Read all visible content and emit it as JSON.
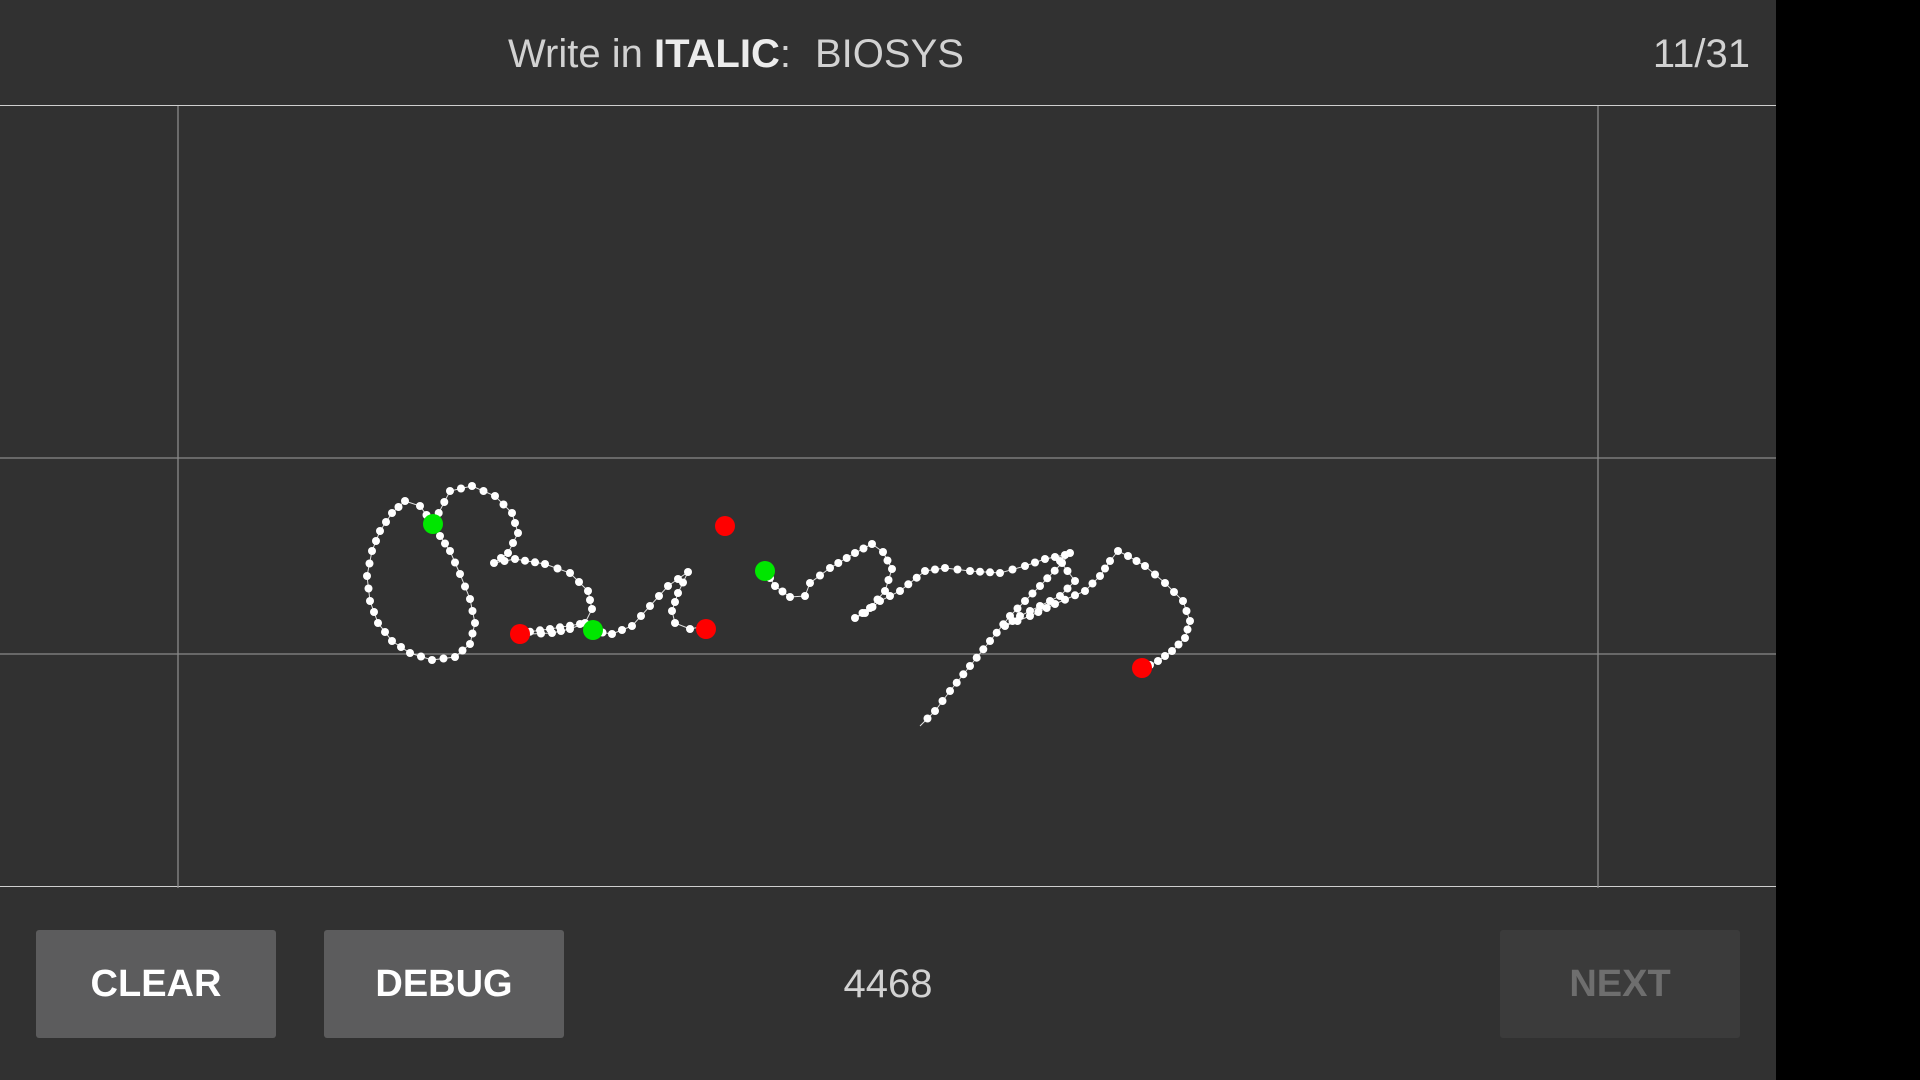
{
  "header": {
    "prompt_prefix": "Write in",
    "style_word": "ITALIC",
    "colon": ":",
    "target_word": "BIOSYS",
    "progress": "11/31"
  },
  "footer": {
    "clear_label": "CLEAR",
    "debug_label": "DEBUG",
    "counter": "4468",
    "next_label": "NEXT"
  },
  "colors": {
    "background": "#313131",
    "ink_points": "#ffffff",
    "stroke_start": "#00e600",
    "stroke_end": "#ff0000",
    "guide_lines": "#8a8a8a",
    "next_disabled_text": "#6e6e6e"
  }
}
